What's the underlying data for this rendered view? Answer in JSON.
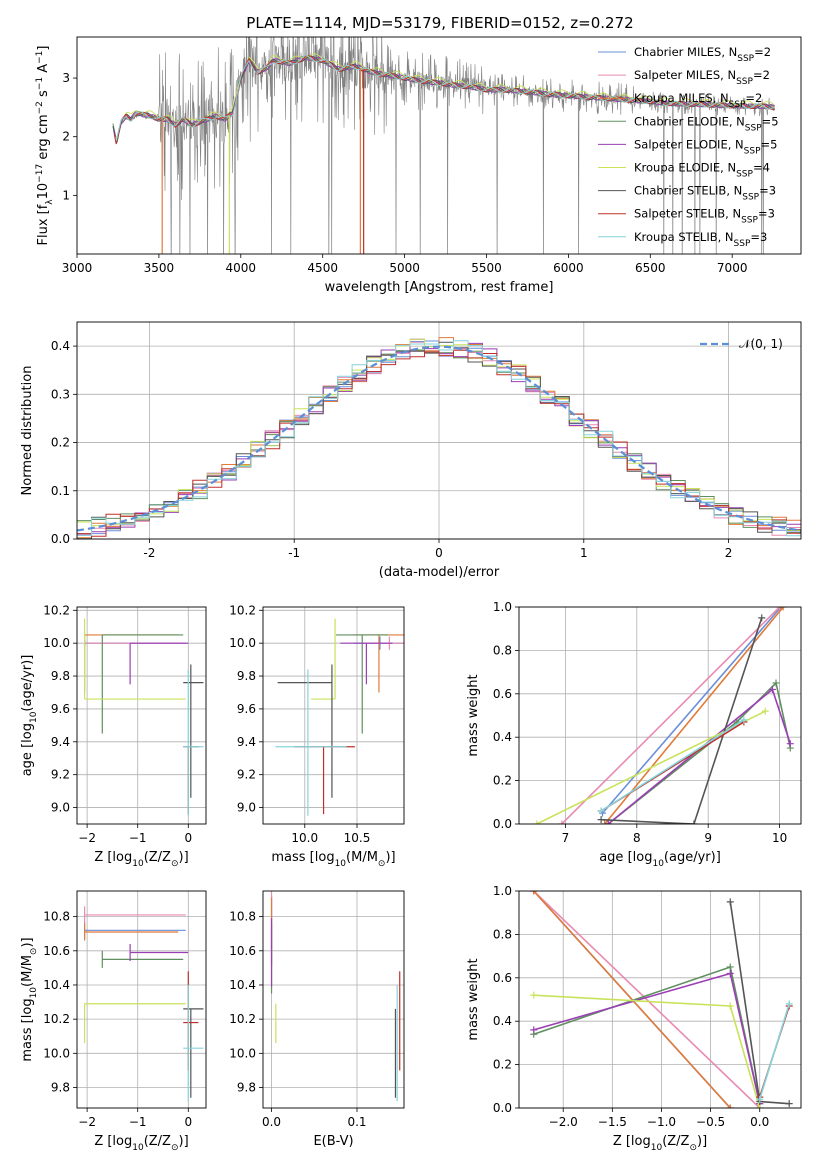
{
  "title": "PLATE=1114, MJD=53179, FIBERID=0152, z=0.272",
  "colors": {
    "chabrier_miles": "#6a8fd8",
    "salpeter_miles": "#e88bb2",
    "kroupa_miles": "#e07b39",
    "chabrier_elodie": "#5f8f5f",
    "salpeter_elodie": "#9b3fb5",
    "kroupa_elodie": "#c8e35a",
    "chabrier_stelib": "#555555",
    "salpeter_stelib": "#c0302a",
    "kroupa_stelib": "#86d4dc",
    "spectrum": "#808080",
    "grid": "#b0b0b0"
  },
  "chart_data": [
    {
      "type": "line",
      "xlabel": "wavelength [Angstrom, rest frame]",
      "ylabel_parts": [
        "Flux [f",
        "λ",
        "10",
        "−17",
        " erg cm",
        "−2",
        " s",
        "−1",
        " A",
        "−1",
        "]"
      ],
      "xlim": [
        3000,
        7420
      ],
      "ylim": [
        0,
        3.7
      ],
      "xticks": [
        3000,
        3500,
        4000,
        4500,
        5000,
        5500,
        6000,
        6500,
        7000
      ],
      "yticks": [
        1,
        2,
        3
      ],
      "grid": false,
      "legend_position": "top-right",
      "legend": [
        {
          "pre": "Chabrier MILES, N",
          "sub": "SSP",
          "post": "=2"
        },
        {
          "pre": "Salpeter MILES, N",
          "sub": "SSP",
          "post": "=2"
        },
        {
          "pre": "Kroupa MILES, N",
          "sub": "SSP",
          "post": "=2"
        },
        {
          "pre": "Chabrier ELODIE, N",
          "sub": "SSP",
          "post": "=5"
        },
        {
          "pre": "Salpeter ELODIE, N",
          "sub": "SSP",
          "post": "=5"
        },
        {
          "pre": "Kroupa ELODIE, N",
          "sub": "SSP",
          "post": "=4"
        },
        {
          "pre": "Chabrier STELIB, N",
          "sub": "SSP",
          "post": "=3"
        },
        {
          "pre": "Salpeter STELIB, N",
          "sub": "SSP",
          "post": "=3"
        },
        {
          "pre": "Kroupa STELIB, N",
          "sub": "SSP",
          "post": "=3"
        }
      ],
      "continuum": {
        "x": [
          3220,
          3240,
          3270,
          3300,
          3330,
          3360,
          3400,
          3450,
          3500,
          3550,
          3600,
          3650,
          3700,
          3750,
          3800,
          3850,
          3900,
          3950,
          4000,
          4050,
          4100,
          4150,
          4200,
          4300,
          4400,
          4500,
          4600,
          4700,
          4800,
          4900,
          5000,
          5100,
          5200,
          5300,
          5400,
          5500,
          5600,
          5700,
          5800,
          5900,
          6000,
          6100,
          6200,
          6300,
          6400,
          6500,
          6600,
          6700,
          6800,
          6900,
          7000,
          7100,
          7200,
          7260
        ],
        "y": [
          2.2,
          1.9,
          2.25,
          2.35,
          2.3,
          2.4,
          2.38,
          2.35,
          2.3,
          2.3,
          2.2,
          2.3,
          2.2,
          2.25,
          2.3,
          2.35,
          2.3,
          2.4,
          3.0,
          3.3,
          3.1,
          3.15,
          3.3,
          3.25,
          3.35,
          3.3,
          3.15,
          3.2,
          3.1,
          3.05,
          3.0,
          2.95,
          2.92,
          2.88,
          2.85,
          2.8,
          2.8,
          2.78,
          2.75,
          2.72,
          2.7,
          2.68,
          2.66,
          2.64,
          2.62,
          2.6,
          2.57,
          2.56,
          2.55,
          2.54,
          2.53,
          2.52,
          2.52,
          2.5
        ]
      }
    },
    {
      "type": "step",
      "xlabel": "(data-model)/error",
      "ylabel": "Normed distribution",
      "xlim": [
        -2.5,
        2.5
      ],
      "ylim": [
        0,
        0.45
      ],
      "xticks": [
        -2,
        -1,
        0,
        1,
        2
      ],
      "yticks": [
        0.0,
        0.1,
        0.2,
        0.3,
        0.4
      ],
      "grid": true,
      "bin_width": 0.1,
      "gaussian_label": "𝒩(0, 1)",
      "legend_position": "top-right"
    },
    {
      "type": "errorbar",
      "xlabel_pre": "Z [log",
      "xlabel_sub": "10",
      "xlabel_post": "(Z/Z",
      "xlabel_sun": "⊙",
      "xlabel_end": ")]",
      "ylabel_pre": "age  [log",
      "ylabel_sub": "10",
      "ylabel_post": "(age/yr)]",
      "xlim": [
        -2.2,
        0.35
      ],
      "ylim": [
        8.9,
        10.22
      ],
      "xticks": [
        -2,
        -1,
        0
      ],
      "yticks": [
        9.0,
        9.2,
        9.4,
        9.6,
        9.8,
        10.0,
        10.2
      ],
      "grid": true
    },
    {
      "type": "errorbar",
      "xlabel_pre": "mass [log",
      "xlabel_sub": "10",
      "xlabel_post": "(M/M",
      "xlabel_sun": "⊙",
      "xlabel_end": ")]",
      "xlim": [
        9.6,
        10.95
      ],
      "ylim": [
        8.9,
        10.22
      ],
      "xticks": [
        10.0,
        10.5
      ],
      "yticks": [
        9.0,
        9.2,
        9.4,
        9.6,
        9.8,
        10.0,
        10.2
      ],
      "grid": true
    },
    {
      "type": "line",
      "xlabel_pre": "age  [log",
      "xlabel_sub": "10",
      "xlabel_post": "(age/yr)]",
      "ylabel": "mass weight",
      "xlim": [
        6.35,
        10.3
      ],
      "ylim": [
        0,
        1
      ],
      "xticks": [
        7,
        8,
        9,
        10
      ],
      "yticks": [
        0.0,
        0.2,
        0.4,
        0.6,
        0.8,
        1.0
      ],
      "grid": true
    },
    {
      "type": "errorbar",
      "xlabel_pre": "Z [log",
      "xlabel_sub": "10",
      "xlabel_post": "(Z/Z",
      "xlabel_sun": "⊙",
      "xlabel_end": ")]",
      "ylabel_pre": "mass [log",
      "ylabel_sub": "10",
      "ylabel_post": "(M/M",
      "ylabel_sun": "⊙",
      "ylabel_end": ")]",
      "xlim": [
        -2.2,
        0.35
      ],
      "ylim": [
        9.68,
        10.95
      ],
      "xticks": [
        -2,
        -1,
        0
      ],
      "yticks": [
        9.8,
        10.0,
        10.2,
        10.4,
        10.6,
        10.8
      ],
      "grid": true
    },
    {
      "type": "errorbar",
      "xlabel": "E(B-V)",
      "xlim": [
        -0.01,
        0.155
      ],
      "ylim": [
        9.68,
        10.95
      ],
      "xticks": [
        0.0,
        0.1
      ],
      "yticks": [
        9.8,
        10.0,
        10.2,
        10.4,
        10.6,
        10.8
      ],
      "grid": true
    },
    {
      "type": "line",
      "xlabel_pre": "Z [log",
      "xlabel_sub": "10",
      "xlabel_post": "(Z/Z",
      "xlabel_sun": "⊙",
      "xlabel_end": ")]",
      "ylabel": "mass weight",
      "xlim": [
        -2.45,
        0.42
      ],
      "ylim": [
        0,
        1
      ],
      "xticks": [
        -2.0,
        -1.5,
        -1.0,
        -0.5,
        0.0
      ],
      "yticks": [
        0.0,
        0.2,
        0.4,
        0.6,
        0.8,
        1.0
      ],
      "grid": true
    }
  ],
  "models": [
    {
      "key": "chabrier_miles",
      "z": -2.05,
      "zlo": -2.05,
      "zhi": -0.05,
      "age": 10.0,
      "alo": 10.0,
      "ahi": 10.0,
      "mass": 10.72,
      "mlo": 10.72,
      "mhi": 10.72,
      "ebv": 0.0,
      "age_w": [
        [
          7.52,
          0.05
        ],
        [
          10.02,
          1.0
        ]
      ],
      "z_w": [
        [
          -2.3,
          1.0
        ],
        [
          -0.3,
          0.0
        ]
      ]
    },
    {
      "key": "salpeter_miles",
      "z": -2.05,
      "zlo": -2.05,
      "zhi": -0.05,
      "age": 10.0,
      "alo": 10.0,
      "ahi": 10.0,
      "mass": 10.81,
      "mlo": 10.81,
      "mhi": 10.81,
      "ebv": 0.0,
      "age_w": [
        [
          6.95,
          0.0
        ],
        [
          10.0,
          1.0
        ]
      ],
      "z_w": [
        [
          -2.3,
          1.0
        ],
        [
          0.0,
          0.0
        ]
      ]
    },
    {
      "key": "kroupa_miles",
      "z": -2.05,
      "zlo": -2.05,
      "zhi": -0.2,
      "age": 10.05,
      "alo": 9.7,
      "ahi": 10.05,
      "mass": 10.71,
      "mlo": 10.71,
      "mhi": 10.71,
      "ebv": 0.0,
      "age_w": [
        [
          7.55,
          0.0
        ],
        [
          10.05,
          1.0
        ]
      ],
      "z_w": [
        [
          -2.3,
          1.0
        ],
        [
          -0.3,
          0.0
        ]
      ]
    },
    {
      "key": "chabrier_elodie",
      "z": -1.7,
      "zlo": -1.7,
      "zhi": -0.1,
      "age": 10.05,
      "alo": 9.45,
      "ahi": 10.05,
      "mass": 10.55,
      "mlo": 10.55,
      "mhi": 10.55,
      "ebv": 0.0,
      "age_w": [
        [
          7.6,
          0.0
        ],
        [
          9.4,
          0.47
        ],
        [
          9.95,
          0.65
        ],
        [
          10.15,
          0.35
        ]
      ],
      "z_w": [
        [
          -2.3,
          0.34
        ],
        [
          -0.3,
          0.65
        ],
        [
          0.0,
          0.02
        ]
      ]
    },
    {
      "key": "salpeter_elodie",
      "z": -1.15,
      "zlo": -1.15,
      "zhi": 0.0,
      "age": 10.0,
      "alo": 9.75,
      "ahi": 10.0,
      "mass": 10.59,
      "mlo": 10.59,
      "mhi": 10.59,
      "ebv": 0.0,
      "age_w": [
        [
          7.6,
          0.0
        ],
        [
          9.9,
          0.62
        ],
        [
          10.15,
          0.37
        ]
      ],
      "z_w": [
        [
          -2.3,
          0.36
        ],
        [
          -0.3,
          0.62
        ],
        [
          0.0,
          0.02
        ]
      ]
    },
    {
      "key": "kroupa_elodie",
      "z": -2.05,
      "zlo": -2.05,
      "zhi": -0.05,
      "age": 9.66,
      "alo": 9.66,
      "ahi": 10.15,
      "mass": 10.29,
      "mlo": 10.06,
      "mhi": 10.29,
      "ebv": 0.005,
      "age_w": [
        [
          6.6,
          0.0
        ],
        [
          9.8,
          0.52
        ]
      ],
      "z_w": [
        [
          -2.3,
          0.52
        ],
        [
          -0.3,
          0.47
        ],
        [
          0.0,
          0.0
        ]
      ]
    },
    {
      "key": "chabrier_stelib",
      "z": 0.05,
      "zlo": -0.1,
      "zhi": 0.3,
      "age": 9.76,
      "alo": 9.06,
      "ahi": 9.87,
      "mass": 10.26,
      "mlo": 9.74,
      "mhi": 10.26,
      "ebv": 0.145,
      "age_w": [
        [
          7.5,
          0.02
        ],
        [
          8.8,
          0.0
        ],
        [
          9.75,
          0.95
        ]
      ],
      "z_w": [
        [
          -0.3,
          0.95
        ],
        [
          0.0,
          0.03
        ],
        [
          0.3,
          0.02
        ]
      ]
    },
    {
      "key": "salpeter_stelib",
      "z": 0.0,
      "zlo": -0.1,
      "zhi": 0.2,
      "age": 9.37,
      "alo": 8.96,
      "ahi": 9.37,
      "mass": 10.18,
      "mlo": 9.9,
      "mhi": 10.48,
      "ebv": 0.15,
      "age_w": [
        [
          7.5,
          0.06
        ],
        [
          9.5,
          0.47
        ]
      ],
      "z_w": [
        [
          0.0,
          0.05
        ],
        [
          0.3,
          0.47
        ]
      ]
    },
    {
      "key": "kroupa_stelib",
      "z": 0.0,
      "zlo": -0.1,
      "zhi": 0.3,
      "age": 9.37,
      "alo": 8.95,
      "ahi": 9.84,
      "mass": 10.03,
      "mlo": 9.72,
      "mhi": 10.4,
      "ebv": 0.147,
      "age_w": [
        [
          7.5,
          0.06
        ],
        [
          9.5,
          0.48
        ]
      ],
      "z_w": [
        [
          0.0,
          0.04
        ],
        [
          0.3,
          0.48
        ]
      ]
    }
  ]
}
